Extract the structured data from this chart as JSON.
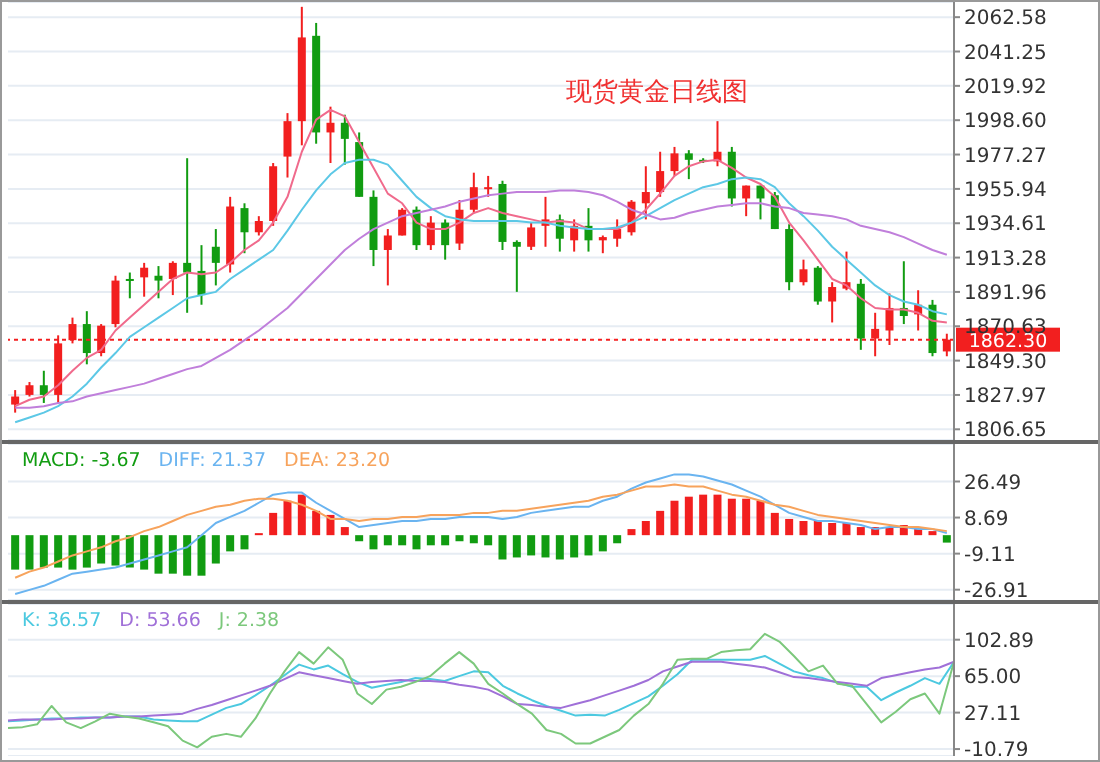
{
  "chart_data": [
    {
      "type": "candlestick",
      "title": "现货黄金日线图",
      "categories": [
        null,
        null,
        null,
        null,
        null,
        null,
        null,
        null,
        null,
        null,
        null,
        null,
        null,
        null,
        null,
        null,
        null,
        null,
        null,
        null,
        null,
        null,
        null,
        null,
        null,
        null,
        null,
        null,
        null,
        null,
        null,
        null,
        null,
        null,
        null,
        null,
        null,
        null,
        null,
        null,
        null,
        null,
        null,
        null,
        null,
        null,
        null,
        null,
        null,
        null,
        null,
        null,
        null,
        null,
        null,
        null,
        null,
        null,
        null,
        null,
        null,
        null,
        null,
        null,
        null,
        null
      ],
      "ohlc": [
        [
          1822,
          1831,
          1817,
          1827
        ],
        [
          1828,
          1836,
          1827,
          1834
        ],
        [
          1834,
          1843,
          1823,
          1828
        ],
        [
          1828,
          1865,
          1823,
          1860
        ],
        [
          1862,
          1876,
          1860,
          1872
        ],
        [
          1872,
          1880,
          1847,
          1854
        ],
        [
          1854,
          1872,
          1852,
          1871
        ],
        [
          1872,
          1902,
          1870,
          1899
        ],
        [
          1900,
          1904,
          1888,
          1899
        ],
        [
          1901,
          1910,
          1889,
          1907
        ],
        [
          1902,
          1908,
          1888,
          1899
        ],
        [
          1900,
          1911,
          1890,
          1910
        ],
        [
          1910,
          1975,
          1879,
          1904
        ],
        [
          1905,
          1921,
          1884,
          1890
        ],
        [
          1920,
          1931,
          1896,
          1910
        ],
        [
          1909,
          1951,
          1904,
          1945
        ],
        [
          1944,
          1947,
          1916,
          1929
        ],
        [
          1929,
          1939,
          1927,
          1936
        ],
        [
          1936,
          1972,
          1933,
          1970
        ],
        [
          1976,
          2003,
          1963,
          1998
        ],
        [
          1998,
          2069,
          1983,
          2050
        ],
        [
          2051,
          2059,
          1984,
          1991
        ],
        [
          1991,
          2007,
          1972,
          1997
        ],
        [
          1997,
          2002,
          1971,
          1987
        ],
        [
          1985,
          1991,
          1951,
          1951
        ],
        [
          1951,
          1955,
          1908,
          1918
        ],
        [
          1918,
          1931,
          1896,
          1927
        ],
        [
          1927,
          1944,
          1927,
          1943
        ],
        [
          1943,
          1945,
          1918,
          1921
        ],
        [
          1921,
          1939,
          1918,
          1935
        ],
        [
          1935,
          1937,
          1912,
          1921
        ],
        [
          1922,
          1949,
          1918,
          1943
        ],
        [
          1943,
          1966,
          1941,
          1957
        ],
        [
          1957,
          1964,
          1951,
          1957
        ],
        [
          1959,
          1961,
          1918,
          1923
        ],
        [
          1923,
          1924,
          1892,
          1920
        ],
        [
          1920,
          1935,
          1918,
          1932
        ],
        [
          1933,
          1951,
          1920,
          1937
        ],
        [
          1937,
          1940,
          1917,
          1925
        ],
        [
          1924,
          1937,
          1917,
          1933
        ],
        [
          1933,
          1944,
          1917,
          1924
        ],
        [
          1924,
          1927,
          1916,
          1926
        ],
        [
          1925,
          1937,
          1920,
          1931
        ],
        [
          1929,
          1949,
          1927,
          1948
        ],
        [
          1947,
          1970,
          1937,
          1954
        ],
        [
          1954,
          1979,
          1951,
          1967
        ],
        [
          1967,
          1982,
          1964,
          1978
        ],
        [
          1978,
          1980,
          1962,
          1974
        ],
        [
          1974,
          1975,
          1972,
          1973
        ],
        [
          1973,
          1998,
          1970,
          1979
        ],
        [
          1979,
          1982,
          1945,
          1950
        ],
        [
          1950,
          1958,
          1939,
          1958
        ],
        [
          1958,
          1958,
          1937,
          1950
        ],
        [
          1952,
          1954,
          1931,
          1931
        ],
        [
          1931,
          1934,
          1893,
          1898
        ],
        [
          1898,
          1912,
          1896,
          1906
        ],
        [
          1907,
          1908,
          1884,
          1886
        ],
        [
          1886,
          1898,
          1873,
          1895
        ],
        [
          1894,
          1917,
          1893,
          1898
        ],
        [
          1897,
          1900,
          1856,
          1863
        ],
        [
          1863,
          1879,
          1852,
          1869
        ],
        [
          1868,
          1891,
          1859,
          1882
        ],
        [
          1882,
          1911,
          1872,
          1877
        ],
        [
          1878,
          1893,
          1868,
          1884
        ],
        [
          1884,
          1887,
          1852,
          1854
        ],
        [
          1855,
          1866,
          1852,
          1862.3
        ]
      ],
      "colors": [
        "#f21f1f",
        "#f21f1f",
        "#119c11",
        "#f21f1f",
        "#f21f1f",
        "#119c11",
        "#f21f1f",
        "#f21f1f",
        "#119c11",
        "#f21f1f",
        "#119c11",
        "#f21f1f",
        "#119c11",
        "#119c11",
        "#119c11",
        "#f21f1f",
        "#119c11",
        "#f21f1f",
        "#f21f1f",
        "#f21f1f",
        "#f21f1f",
        "#119c11",
        "#f21f1f",
        "#119c11",
        "#119c11",
        "#119c11",
        "#f21f1f",
        "#f21f1f",
        "#119c11",
        "#f21f1f",
        "#119c11",
        "#f21f1f",
        "#f21f1f",
        "#f21f1f",
        "#119c11",
        "#119c11",
        "#f21f1f",
        "#f21f1f",
        "#119c11",
        "#f21f1f",
        "#119c11",
        "#f21f1f",
        "#f21f1f",
        "#f21f1f",
        "#f21f1f",
        "#f21f1f",
        "#f21f1f",
        "#119c11",
        "#119c11",
        "#f21f1f",
        "#119c11",
        "#f21f1f",
        "#119c11",
        "#119c11",
        "#119c11",
        "#f21f1f",
        "#119c11",
        "#f21f1f",
        "#f21f1f",
        "#119c11",
        "#f21f1f",
        "#f21f1f",
        "#119c11",
        "#f21f1f",
        "#119c11",
        "#f21f1f"
      ],
      "series": [
        {
          "type": "line",
          "color": "#f06a8c",
          "values": [
            1821,
            1825,
            1827,
            1834,
            1843,
            1851,
            1856,
            1868,
            1876,
            1884,
            1892,
            1900,
            1904,
            1903,
            1904,
            1910,
            1918,
            1924,
            1935,
            1951,
            1979,
            1999,
            2005,
            2001,
            1985,
            1969,
            1953,
            1947,
            1935,
            1931,
            1931,
            1935,
            1941,
            1944,
            1941,
            1939,
            1937,
            1935,
            1936,
            1935,
            1931,
            1931,
            1931,
            1935,
            1943,
            1953,
            1964,
            1970,
            1973,
            1974,
            1969,
            1963,
            1959,
            1951,
            1935,
            1924,
            1912,
            1900,
            1896,
            1888,
            1882,
            1881,
            1881,
            1879,
            1874,
            1873
          ]
        },
        {
          "type": "line",
          "color": "#5cc8e6",
          "values": [
            1811,
            1814,
            1817,
            1821,
            1827,
            1835,
            1845,
            1854,
            1864,
            1870,
            1876,
            1882,
            1888,
            1890,
            1892,
            1900,
            1906,
            1912,
            1918,
            1930,
            1943,
            1955,
            1965,
            1972,
            1974,
            1974,
            1971,
            1961,
            1951,
            1944,
            1939,
            1937,
            1936,
            1936,
            1936,
            1936,
            1935,
            1935,
            1933,
            1932,
            1931,
            1931,
            1932,
            1935,
            1939,
            1944,
            1949,
            1953,
            1957,
            1959,
            1962,
            1963,
            1962,
            1957,
            1947,
            1939,
            1930,
            1920,
            1912,
            1904,
            1896,
            1890,
            1886,
            1884,
            1880,
            1878
          ]
        },
        {
          "type": "line",
          "color": "#c07fdb",
          "values": [
            1820,
            1820,
            1821,
            1823,
            1824,
            1827,
            1829,
            1831,
            1833,
            1835,
            1838,
            1841,
            1844,
            1846,
            1851,
            1856,
            1862,
            1868,
            1875,
            1882,
            1891,
            1900,
            1909,
            1918,
            1925,
            1931,
            1935,
            1939,
            1941,
            1943,
            1945,
            1948,
            1950,
            1952,
            1953,
            1954,
            1954,
            1954,
            1955,
            1955,
            1954,
            1952,
            1948,
            1943,
            1940,
            1937,
            1938,
            1941,
            1943,
            1945,
            1946,
            1947,
            1947,
            1945,
            1944,
            1941,
            1940,
            1939,
            1937,
            1933,
            1931,
            1929,
            1926,
            1922,
            1918,
            1915
          ]
        }
      ],
      "ylim": [
        1800,
        2072
      ],
      "yticks": [
        2062.58,
        2041.25,
        2019.92,
        {
          "value": 1998.6,
          "label": "1998.60"
        },
        1977.27,
        1955.94,
        1934.61,
        1913.28,
        1891.96,
        1870.63,
        {
          "value": 1849.3,
          "label": "1849.30"
        },
        1827.97,
        1806.65
      ],
      "ref_lines": [
        {
          "axis": "y",
          "value": 1862.3,
          "label": "1862.30",
          "color": "#f21f1f",
          "line_style": "dotted"
        }
      ],
      "grid": "y",
      "tick_labels": "y",
      "marker": "none"
    },
    {
      "type": "bar",
      "categories": [
        null,
        null,
        null,
        null,
        null,
        null,
        null,
        null,
        null,
        null,
        null,
        null,
        null,
        null,
        null,
        null,
        null,
        null,
        null,
        null,
        null,
        null,
        null,
        null,
        null,
        null,
        null,
        null,
        null,
        null,
        null,
        null,
        null,
        null,
        null,
        null,
        null,
        null,
        null,
        null,
        null,
        null,
        null,
        null,
        null,
        null,
        null,
        null,
        null,
        null,
        null,
        null,
        null,
        null,
        null,
        null,
        null,
        null,
        null,
        null,
        null,
        null,
        null,
        null,
        null,
        null
      ],
      "series": [
        {
          "name": "MACD: -3.67",
          "color": "#119c11",
          "colors": [
            "#119c11",
            "#119c11",
            "#119c11",
            "#119c11",
            "#119c11",
            "#119c11",
            "#119c11",
            "#119c11",
            "#119c11",
            "#119c11",
            "#119c11",
            "#119c11",
            "#119c11",
            "#119c11",
            "#119c11",
            "#119c11",
            "#119c11",
            "#f21f1f",
            "#f21f1f",
            "#f21f1f",
            "#f21f1f",
            "#f21f1f",
            "#f21f1f",
            "#f21f1f",
            "#119c11",
            "#119c11",
            "#119c11",
            "#119c11",
            "#119c11",
            "#119c11",
            "#119c11",
            "#119c11",
            "#119c11",
            "#119c11",
            "#119c11",
            "#119c11",
            "#119c11",
            "#119c11",
            "#119c11",
            "#119c11",
            "#119c11",
            "#119c11",
            "#119c11",
            "#f21f1f",
            "#f21f1f",
            "#f21f1f",
            "#f21f1f",
            "#f21f1f",
            "#f21f1f",
            "#f21f1f",
            "#f21f1f",
            "#f21f1f",
            "#f21f1f",
            "#f21f1f",
            "#f21f1f",
            "#f21f1f",
            "#f21f1f",
            "#f21f1f",
            "#f21f1f",
            "#f21f1f",
            "#f21f1f",
            "#f21f1f",
            "#f21f1f",
            "#f21f1f",
            "#f21f1f",
            "#119c11"
          ],
          "values": [
            -17,
            -17,
            -16,
            -16,
            -17,
            -16,
            -14,
            -15,
            -16,
            -17,
            -19,
            -19,
            -20,
            -20,
            -14,
            -8,
            -7,
            1,
            11,
            17,
            20,
            12,
            10,
            4,
            -3,
            -7,
            -5,
            -5,
            -7,
            -5,
            -5,
            -3,
            -4,
            -5,
            -12,
            -11,
            -10,
            -11,
            -12,
            -11,
            -10,
            -8,
            -4,
            3,
            7,
            12,
            17,
            19,
            20,
            20,
            18,
            18,
            17,
            11,
            8,
            7,
            7,
            6,
            6,
            4,
            4,
            4,
            5,
            4,
            2,
            -3.67
          ]
        },
        {
          "type": "line",
          "name": "DIFF: 21.37",
          "color": "#6ab4f0",
          "values": [
            -29,
            -27,
            -25,
            -22,
            -19,
            -18,
            -17,
            -16,
            -14,
            -12,
            -10,
            -8,
            -6,
            0,
            6,
            9,
            12,
            16,
            20,
            21,
            21,
            16,
            12,
            8,
            4,
            5,
            6,
            7,
            7,
            8,
            8,
            9,
            9,
            9,
            8,
            9,
            11,
            12,
            13,
            14,
            14,
            17,
            19,
            23,
            26,
            28,
            30,
            30,
            29,
            27,
            25,
            22,
            19,
            15,
            11,
            9,
            7,
            7,
            6,
            5,
            3,
            4,
            4,
            3,
            3,
            1
          ]
        },
        {
          "type": "line",
          "name": "DEA: 23.20",
          "color": "#f7a35c",
          "values": [
            -21,
            -18,
            -16,
            -13,
            -10,
            -8,
            -6,
            -3,
            -1,
            2,
            4,
            7,
            10,
            12,
            14,
            15,
            17,
            18,
            18,
            17,
            15,
            12,
            8,
            8,
            7,
            8,
            8,
            9,
            9,
            10,
            10,
            10,
            11,
            11,
            12,
            12,
            13,
            14,
            15,
            16,
            17,
            19,
            20,
            22,
            24,
            24,
            25,
            24,
            24,
            22,
            20,
            19,
            17,
            15,
            14,
            12,
            10,
            9,
            8,
            7,
            6,
            5,
            4,
            4,
            3,
            2
          ]
        }
      ],
      "ylim": [
        -32,
        45
      ],
      "yticks": [
        26.49,
        8.69,
        -9.11,
        -26.91
      ],
      "grid": "y",
      "legend": "top left",
      "tick_labels": "y",
      "marker": "none"
    },
    {
      "type": "line",
      "categories": [
        null,
        null,
        null,
        null,
        null,
        null,
        null,
        null,
        null,
        null,
        null,
        null,
        null,
        null,
        null,
        null,
        null,
        null,
        null,
        null,
        null,
        null,
        null,
        null,
        null,
        null,
        null,
        null,
        null,
        null,
        null,
        null,
        null,
        null,
        null,
        null,
        null,
        null,
        null,
        null,
        null,
        null,
        null,
        null,
        null,
        null,
        null,
        null,
        null,
        null,
        null,
        null,
        null,
        null,
        null,
        null,
        null,
        null,
        null,
        null,
        null,
        null,
        null,
        null,
        null,
        null
      ],
      "series": [
        {
          "name": "K: 36.57",
          "color": "#4cc9e0",
          "values": [
            18,
            19,
            20,
            21,
            21,
            22,
            22,
            22,
            23,
            23,
            20,
            19,
            18,
            18,
            25,
            32,
            36,
            45,
            55,
            66,
            77,
            72,
            76,
            67,
            59,
            53,
            56,
            59,
            63,
            62,
            60,
            65,
            70,
            69,
            55,
            47,
            40,
            34,
            29,
            24,
            25,
            24,
            30,
            37,
            44,
            55,
            67,
            82,
            82,
            82,
            82,
            82,
            86,
            78,
            70,
            66,
            63,
            58,
            54,
            54,
            40,
            48,
            55,
            63,
            57,
            80
          ]
        },
        {
          "name": "D: 53.66",
          "color": "#a070d8",
          "values": [
            19,
            20,
            20,
            20,
            21,
            21,
            22,
            22,
            23,
            23,
            24,
            25,
            26,
            31,
            35,
            40,
            45,
            50,
            55,
            62,
            69,
            66,
            63,
            60,
            57,
            59,
            60,
            61,
            60,
            60,
            59,
            56,
            54,
            51,
            44,
            36,
            35,
            33,
            32,
            36,
            40,
            45,
            50,
            55,
            61,
            70,
            75,
            80,
            80,
            80,
            78,
            76,
            74,
            69,
            64,
            63,
            61,
            59,
            57,
            55,
            63,
            66,
            69,
            72,
            74,
            80
          ]
        },
        {
          "name": "J: 2.38",
          "color": "#7cc87c",
          "values": [
            11,
            12,
            15,
            34,
            17,
            11,
            18,
            26,
            23,
            21,
            17,
            13,
            -2,
            -9,
            2,
            5,
            2,
            21,
            47,
            70,
            90,
            78,
            95,
            82,
            47,
            36,
            51,
            54,
            59,
            65,
            78,
            90,
            78,
            57,
            47,
            36,
            26,
            9,
            5,
            -5,
            -5,
            2,
            9,
            24,
            36,
            57,
            82,
            83,
            83,
            90,
            92,
            93,
            109,
            101,
            86,
            70,
            76,
            57,
            55,
            36,
            17,
            28,
            41,
            47,
            26,
            80
          ]
        }
      ],
      "ylim": [
        -18,
        140
      ],
      "yticks": [
        102.89,
        {
          "value": 65,
          "label": "65.00"
        },
        27.11,
        -10.79
      ],
      "grid": "y",
      "legend": "top left",
      "tick_labels": "y",
      "marker": "none"
    }
  ]
}
